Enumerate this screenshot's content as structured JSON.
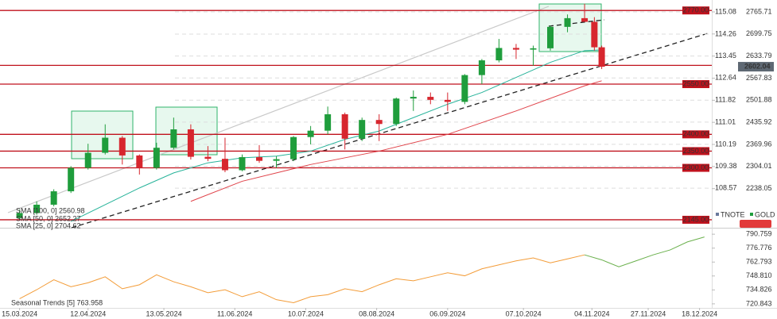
{
  "chart_data": [
    {
      "type": "candlestick",
      "x": [
        0,
        7,
        14,
        21,
        28,
        35,
        42,
        49,
        56,
        63,
        70,
        77,
        84,
        91,
        98,
        105,
        112,
        119,
        126,
        133,
        140,
        147,
        154,
        161,
        168,
        175,
        182,
        189,
        196,
        203,
        210,
        217,
        224,
        231,
        235,
        238
      ],
      "open": [
        2150,
        2165,
        2190,
        2230,
        2300,
        2345,
        2390,
        2337,
        2300,
        2360,
        2415,
        2333,
        2327,
        2293,
        2332,
        2321,
        2326,
        2392,
        2411,
        2460,
        2387,
        2443,
        2431,
        2507,
        2512,
        2503,
        2497,
        2577,
        2621,
        2658,
        2653,
        2657,
        2721,
        2747,
        2736,
        2660
      ],
      "high": [
        2175,
        2200,
        2236,
        2305,
        2372,
        2430,
        2395,
        2340,
        2375,
        2450,
        2430,
        2365,
        2390,
        2340,
        2368,
        2335,
        2395,
        2425,
        2483,
        2465,
        2450,
        2460,
        2510,
        2531,
        2525,
        2525,
        2580,
        2625,
        2685,
        2670,
        2665,
        2725,
        2758,
        2790,
        2750,
        2665
      ],
      "low": [
        2146,
        2160,
        2185,
        2225,
        2295,
        2340,
        2310,
        2280,
        2295,
        2355,
        2325,
        2320,
        2287,
        2290,
        2315,
        2300,
        2320,
        2370,
        2400,
        2355,
        2380,
        2380,
        2425,
        2470,
        2490,
        2470,
        2490,
        2550,
        2615,
        2625,
        2605,
        2650,
        2705,
        2740,
        2650,
        2595
      ],
      "close": [
        2165,
        2190,
        2230,
        2300,
        2345,
        2390,
        2337,
        2300,
        2360,
        2415,
        2333,
        2327,
        2293,
        2332,
        2321,
        2326,
        2392,
        2411,
        2460,
        2387,
        2443,
        2431,
        2507,
        2512,
        2503,
        2497,
        2577,
        2621,
        2658,
        2653,
        2657,
        2721,
        2747,
        2736,
        2660,
        2602
      ],
      "up_color": "#1f9d3c",
      "down_color": "#d7262e",
      "xlim": [
        -8,
        283
      ],
      "xticks": [
        {
          "value": 0,
          "label": "15.03.2024"
        },
        {
          "value": 28,
          "label": "12.04.2024"
        },
        {
          "value": 59,
          "label": "13.05.2024"
        },
        {
          "value": 88,
          "label": "11.06.2024"
        },
        {
          "value": 117,
          "label": "10.07.2024"
        },
        {
          "value": 146,
          "label": "08.08.2024"
        },
        {
          "value": 175,
          "label": "06.09.2024"
        },
        {
          "value": 206,
          "label": "07.10.2024"
        },
        {
          "value": 234,
          "label": "04.11.2024"
        },
        {
          "value": 257,
          "label": "27.11.2024"
        },
        {
          "value": 278,
          "label": "18.12.2024"
        }
      ],
      "ylim": [
        2121.2,
        2801.2
      ],
      "yticks": [
        {
          "value": 2765.71,
          "label": "2765.71"
        },
        {
          "value": 2699.75,
          "label": "2699.75"
        },
        {
          "value": 2633.79,
          "label": "2633.79"
        },
        {
          "value": 2567.83,
          "label": "2567.83"
        },
        {
          "value": 2501.88,
          "label": "2501.88"
        },
        {
          "value": 2435.92,
          "label": "2435.92"
        },
        {
          "value": 2369.96,
          "label": "2369.96"
        },
        {
          "value": 2304.01,
          "label": "2304.01"
        },
        {
          "value": 2238.05,
          "label": "2238.05"
        }
      ],
      "y2lim": [
        107.11,
        115.52
      ],
      "y2ticks": [
        115.08,
        114.26,
        113.45,
        112.64,
        111.82,
        111.01,
        110.19,
        109.38,
        108.57
      ],
      "current": {
        "value": 2602.04,
        "label": "2602.04"
      },
      "levels": [
        {
          "value": 2770,
          "label": "2770.00"
        },
        {
          "value": 2606
        },
        {
          "value": 2550,
          "label": "2550.00"
        },
        {
          "value": 2400,
          "label": "2400.00"
        },
        {
          "value": 2350,
          "label": "2350.00"
        },
        {
          "value": 2300,
          "label": "2300.00"
        },
        {
          "value": 2145,
          "label": "2145.00"
        }
      ],
      "level_color": "#c0121d",
      "overlays": [
        {
          "name": "SMA [50, 0] 2652.27",
          "color": "#27b39a",
          "x": [
            21,
            35,
            49,
            63,
            77,
            91,
            105,
            119,
            133,
            147,
            161,
            175,
            189,
            203,
            217,
            231,
            238
          ],
          "values": [
            2140,
            2190,
            2240,
            2285,
            2315,
            2330,
            2335,
            2350,
            2385,
            2410,
            2450,
            2490,
            2525,
            2570,
            2615,
            2650,
            2652
          ]
        },
        {
          "name": "SMA [100, 0] 2560.98",
          "color": "#e0434a",
          "x": [
            70,
            91,
            119,
            147,
            175,
            203,
            231,
            238
          ],
          "values": [
            2200,
            2260,
            2310,
            2350,
            2400,
            2470,
            2545,
            2560
          ]
        }
      ],
      "legend_extra": "SMA [25, 0] 2704.62",
      "legend_series": [
        "TNOTE",
        "GOLD"
      ]
    },
    {
      "type": "line",
      "title": "Seasonal Trends [5] 763.958",
      "series": [
        {
          "color": "#f39c38",
          "x": [
            0,
            7,
            14,
            21,
            28,
            35,
            42,
            49,
            56,
            63,
            70,
            77,
            84,
            91,
            98,
            105,
            112,
            119,
            126,
            133,
            140,
            147,
            154,
            161,
            168,
            175,
            182,
            189,
            196,
            203,
            210,
            217,
            224,
            231
          ],
          "values": [
            726,
            735,
            745,
            738,
            742,
            748,
            736,
            740,
            750,
            743,
            738,
            732,
            735,
            728,
            733,
            725,
            722,
            728,
            730,
            736,
            733,
            740,
            746,
            744,
            748,
            752,
            749,
            756,
            760,
            764,
            767,
            762,
            766,
            770
          ]
        },
        {
          "color": "#6ab04c",
          "x": [
            231,
            238,
            245,
            252,
            259,
            266,
            273,
            280
          ],
          "values": [
            770,
            765,
            758,
            764,
            770,
            775,
            783,
            788
          ]
        }
      ],
      "ylim": [
        716.77,
        796.45
      ],
      "yticks": [
        {
          "value": 790.759,
          "label": "790.759"
        },
        {
          "value": 776.776,
          "label": "776.776"
        },
        {
          "value": 762.793,
          "label": "762.793"
        },
        {
          "value": 748.81,
          "label": "748.810"
        },
        {
          "value": 734.826,
          "label": "734.826"
        },
        {
          "value": 720.843,
          "label": "720.843"
        }
      ]
    }
  ]
}
